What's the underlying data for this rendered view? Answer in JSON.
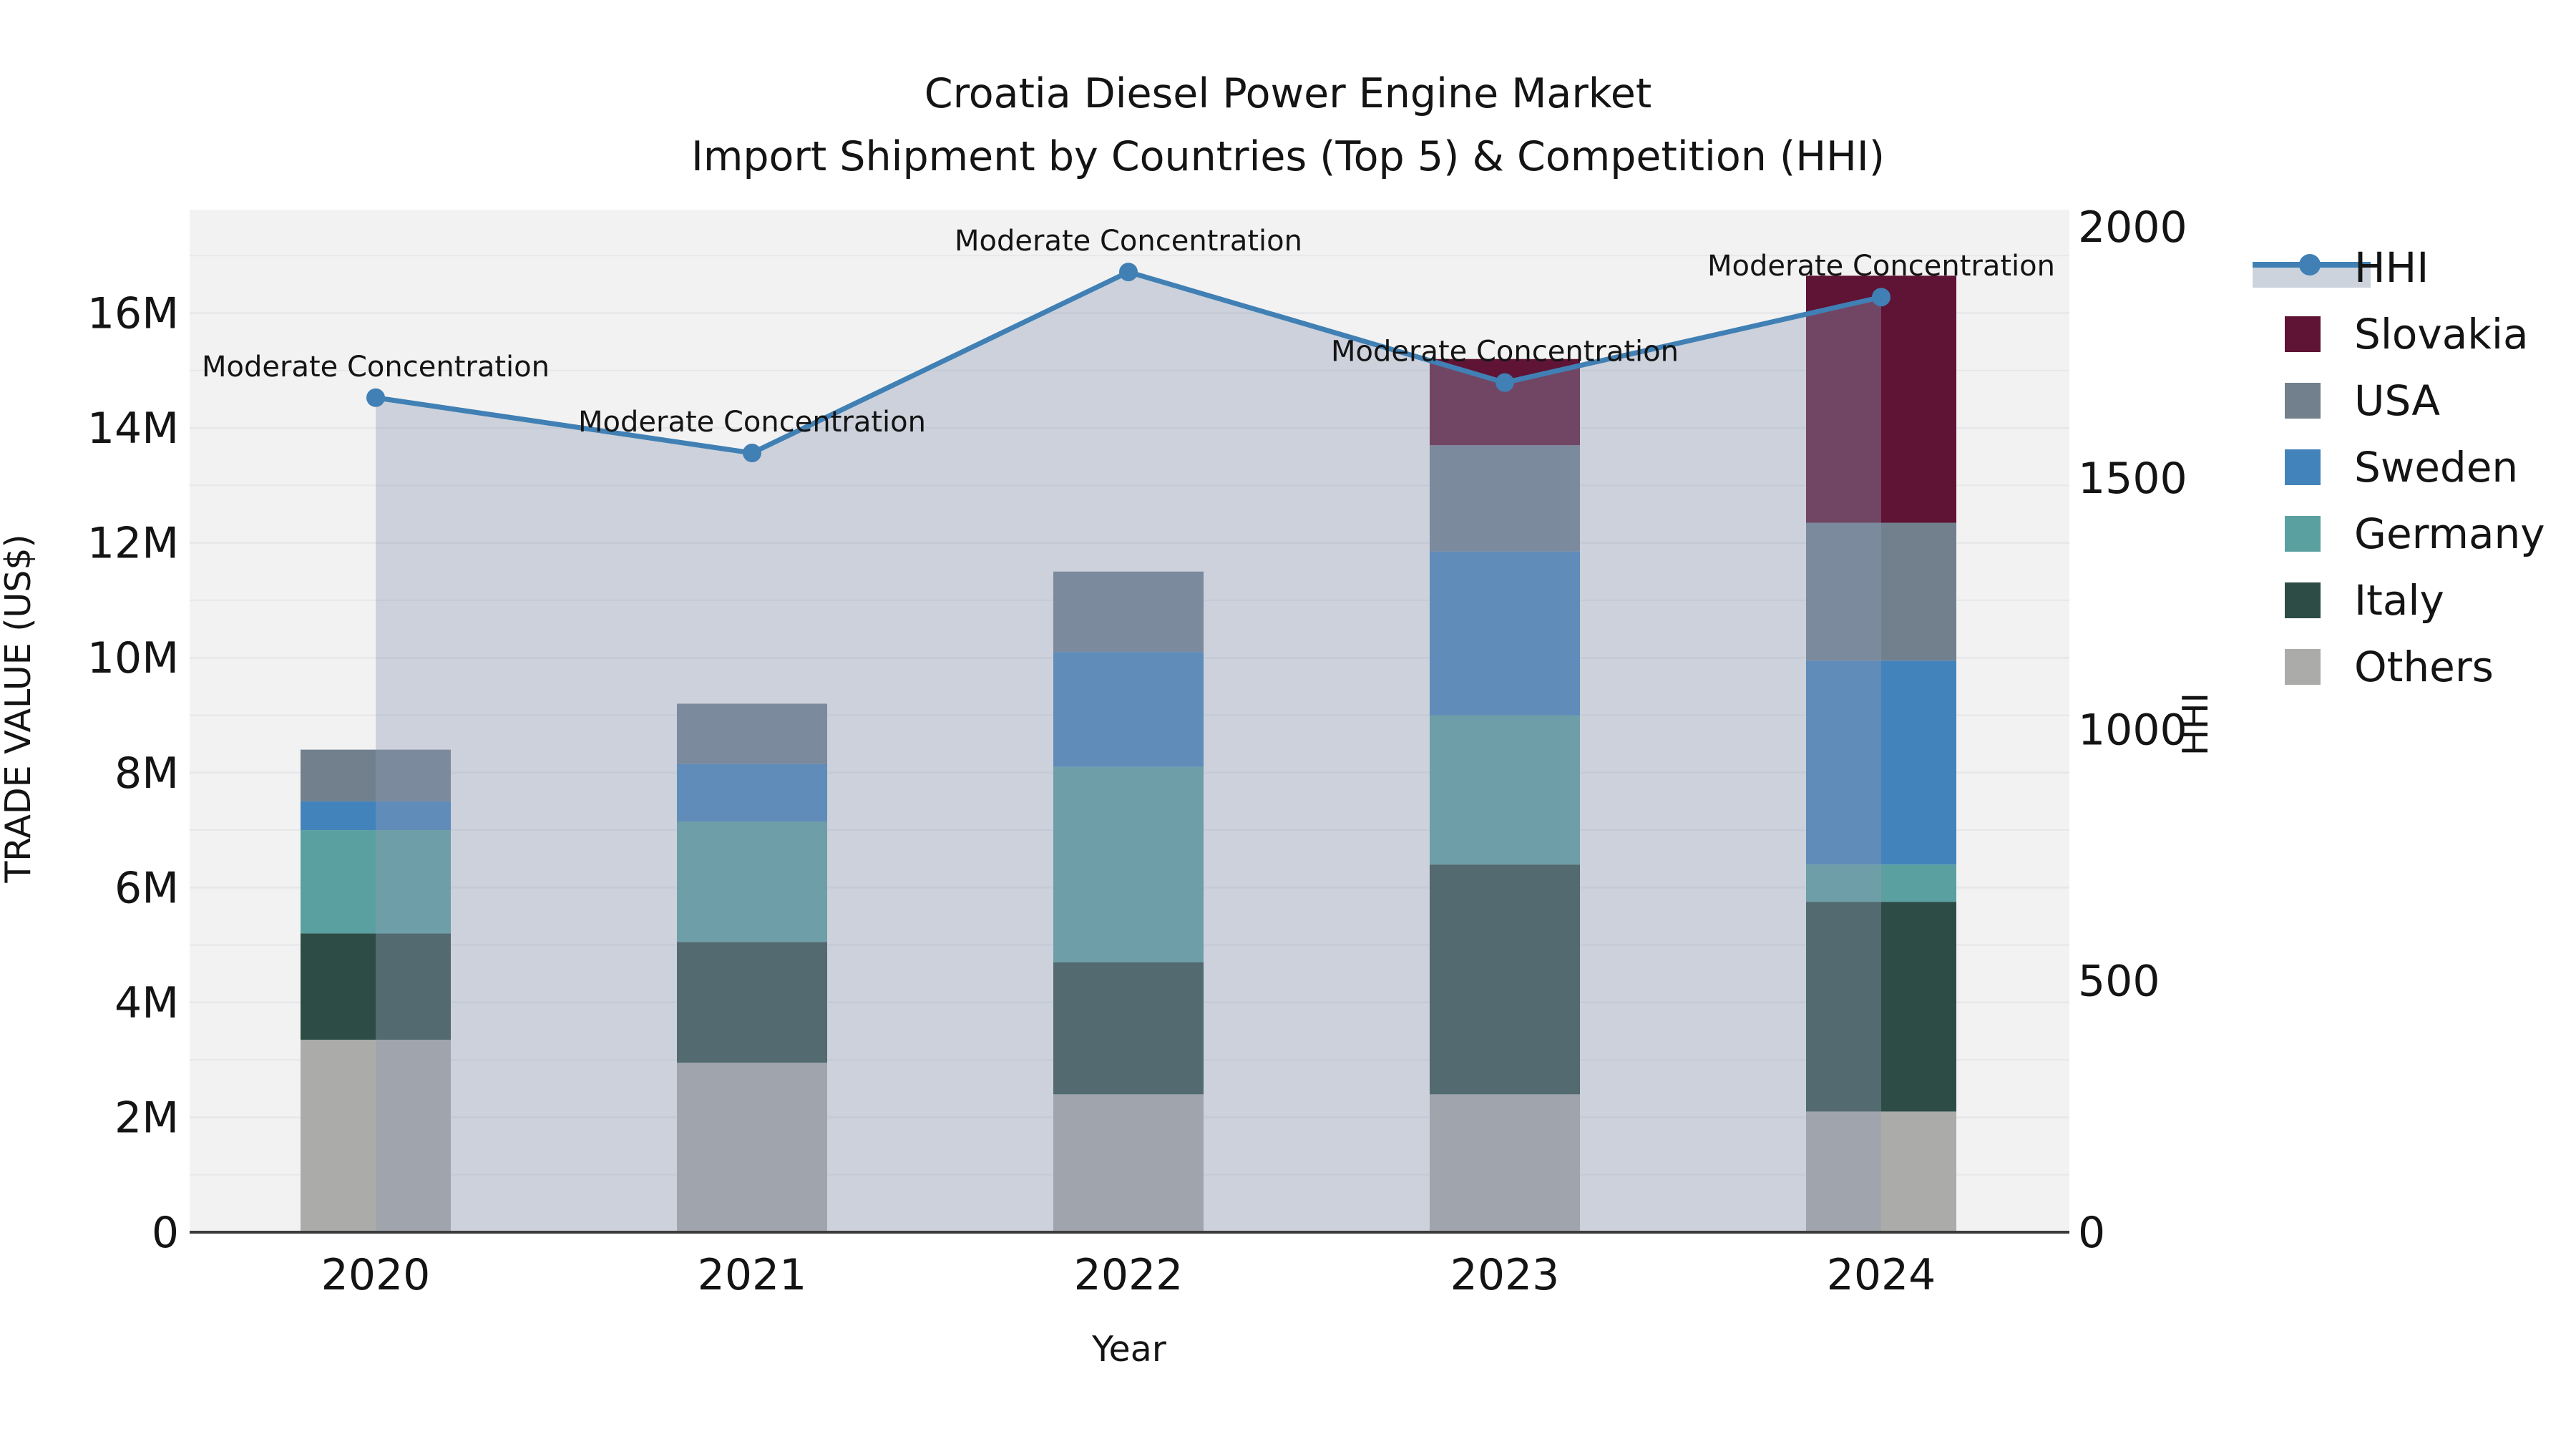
{
  "title": {
    "line1": "Croatia Diesel Power Engine Market",
    "line2": "Import Shipment by Countries (Top 5) & Competition (HHI)"
  },
  "axes": {
    "x_label": "Year",
    "left_label": "TRADE VALUE (US$)",
    "right_label": "HHI"
  },
  "chart_data": {
    "type": "bar+line",
    "subtype": "stacked-bar with secondary-axis line and area fill",
    "categories": [
      "2020",
      "2021",
      "2022",
      "2023",
      "2024"
    ],
    "unit": "millions US$",
    "y_left": {
      "label": "TRADE VALUE (US$)",
      "ticks": [
        "0",
        "2M",
        "4M",
        "6M",
        "8M",
        "10M",
        "12M",
        "14M",
        "16M"
      ],
      "tick_values": [
        0,
        2,
        4,
        6,
        8,
        10,
        12,
        14,
        16
      ],
      "range_max_millions": 17.8,
      "gridlines": "every 1M, subtle"
    },
    "y_right": {
      "label": "HHI",
      "ticks": [
        "0",
        "500",
        "1000",
        "1500",
        "2000"
      ],
      "tick_values": [
        0,
        500,
        1000,
        1500,
        2000
      ],
      "range_max": 2034
    },
    "stack_order_bottom_to_top": [
      "Others",
      "Italy",
      "Germany",
      "Sweden",
      "USA",
      "Slovakia"
    ],
    "series": [
      {
        "name": "Others",
        "color": "#ababa9",
        "values": [
          3.35,
          2.95,
          2.4,
          2.4,
          2.1
        ]
      },
      {
        "name": "Italy",
        "color": "#2e4c46",
        "values": [
          1.85,
          2.1,
          2.3,
          4.0,
          3.65
        ]
      },
      {
        "name": "Germany",
        "color": "#5ba0a1",
        "values": [
          1.8,
          2.1,
          3.4,
          2.6,
          0.65
        ]
      },
      {
        "name": "Sweden",
        "color": "#4383bb",
        "values": [
          0.5,
          1.0,
          2.0,
          2.85,
          3.55
        ]
      },
      {
        "name": "USA",
        "color": "#72808e",
        "values": [
          0.9,
          1.05,
          1.4,
          1.85,
          2.4
        ]
      },
      {
        "name": "Slovakia",
        "color": "#5f1335",
        "values": [
          0.0,
          0.0,
          0.0,
          1.5,
          4.3
        ]
      }
    ],
    "bar_totals_millions": [
      8.4,
      9.2,
      11.5,
      15.2,
      16.65
    ],
    "line_series": {
      "name": "HHI",
      "color": "#4080b4",
      "area_color": "rgba(141,156,181,0.38)",
      "values": [
        1660,
        1550,
        1910,
        1690,
        1860
      ],
      "point_annotations": [
        "Moderate Concentration",
        "Moderate Concentration",
        "Moderate Concentration",
        "Moderate Concentration",
        "Moderate Concentration"
      ]
    },
    "legend_order": [
      "HHI",
      "Slovakia",
      "USA",
      "Sweden",
      "Germany",
      "Italy",
      "Others"
    ],
    "legend_position": "right, outside plot"
  },
  "colors": {
    "plot_bg": "#f3f2f2",
    "gridline": "#e6e7ea",
    "axis_line": "#3b3b3b",
    "text": "#141414",
    "legend_area_band": "#ccd3dd"
  }
}
